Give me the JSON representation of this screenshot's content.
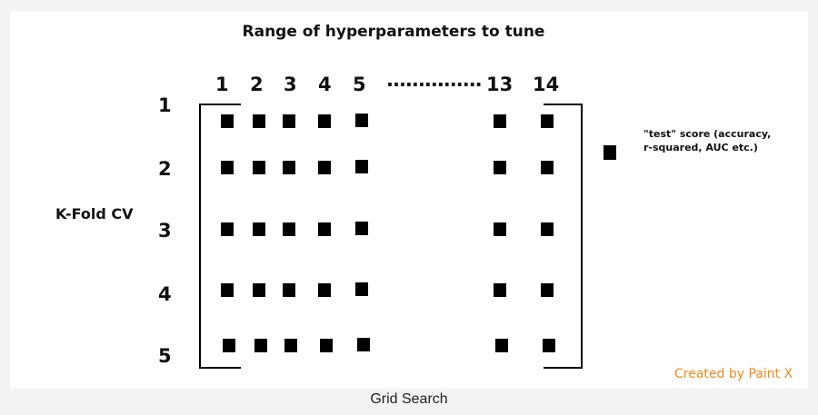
{
  "title": "Range of hyperparameters to tune",
  "columns": {
    "labels": [
      "1",
      "2",
      "3",
      "4",
      "5",
      "13",
      "14"
    ],
    "ellipsis": "..............."
  },
  "rows": {
    "labels": [
      "1",
      "2",
      "3",
      "4",
      "5"
    ]
  },
  "row_axis_label": "K-Fold CV",
  "legend": {
    "text": "\"test\" score (accuracy, r-squared, AUC etc.)"
  },
  "watermark": "Created by Paint X",
  "caption": "Grid Search"
}
